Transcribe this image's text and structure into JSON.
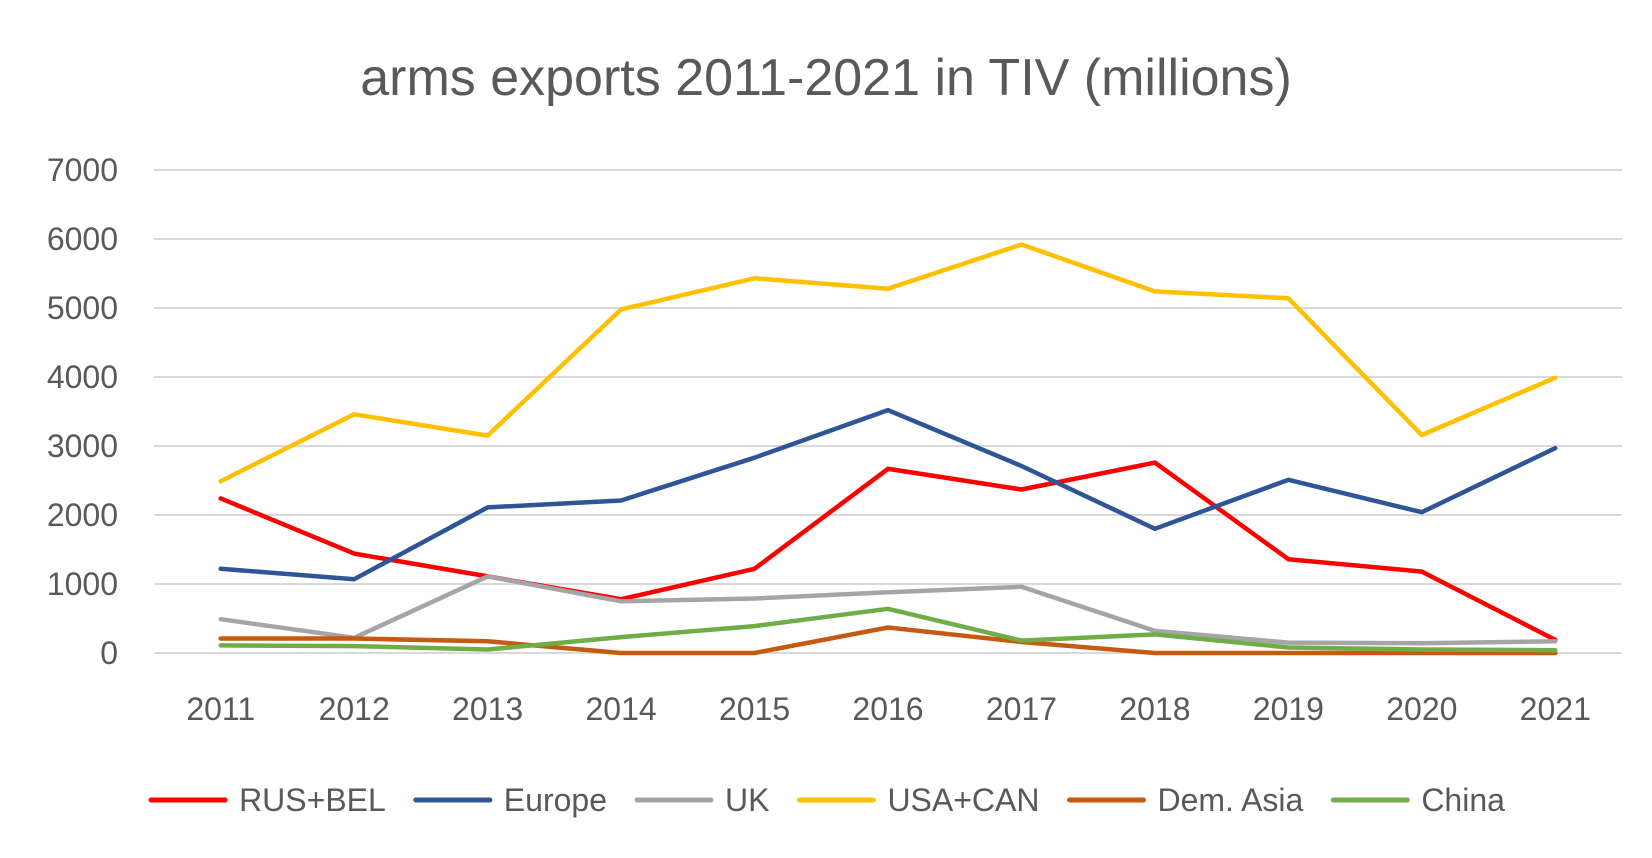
{
  "chart_data": {
    "type": "line",
    "title": "arms exports 2011-2021 in TIV (millions)",
    "xlabel": "",
    "ylabel": "",
    "categories": [
      "2011",
      "2012",
      "2013",
      "2014",
      "2015",
      "2016",
      "2017",
      "2018",
      "2019",
      "2020",
      "2021"
    ],
    "ylim": [
      0,
      7000
    ],
    "yticks": [
      0,
      1000,
      2000,
      3000,
      4000,
      5000,
      6000,
      7000
    ],
    "ytick_labels": [
      "0",
      "1000",
      "2000",
      "3000",
      "4000",
      "5000",
      "6000",
      "7000"
    ],
    "grid": true,
    "legend_position": "bottom",
    "series": [
      {
        "name": "RUS+BEL",
        "color": "#ff0000",
        "values": [
          2240,
          1440,
          1110,
          780,
          1220,
          2670,
          2370,
          2760,
          1360,
          1180,
          190
        ]
      },
      {
        "name": "Europe",
        "color": "#2f5597",
        "values": [
          1220,
          1070,
          2110,
          2210,
          2830,
          3520,
          2710,
          1800,
          2510,
          2040,
          2970
        ]
      },
      {
        "name": "UK",
        "color": "#a5a5a5",
        "values": [
          490,
          220,
          1110,
          750,
          790,
          880,
          960,
          320,
          150,
          140,
          170
        ]
      },
      {
        "name": "USA+CAN",
        "color": "#ffc000",
        "values": [
          2490,
          3460,
          3150,
          4980,
          5430,
          5280,
          5920,
          5240,
          5140,
          3160,
          3990
        ]
      },
      {
        "name": "Dem. Asia",
        "color": "#c55a11",
        "values": [
          210,
          210,
          170,
          0,
          0,
          370,
          160,
          0,
          0,
          0,
          0
        ]
      },
      {
        "name": "China",
        "color": "#70ad47",
        "values": [
          110,
          100,
          50,
          230,
          390,
          640,
          180,
          270,
          80,
          50,
          40
        ]
      }
    ]
  }
}
